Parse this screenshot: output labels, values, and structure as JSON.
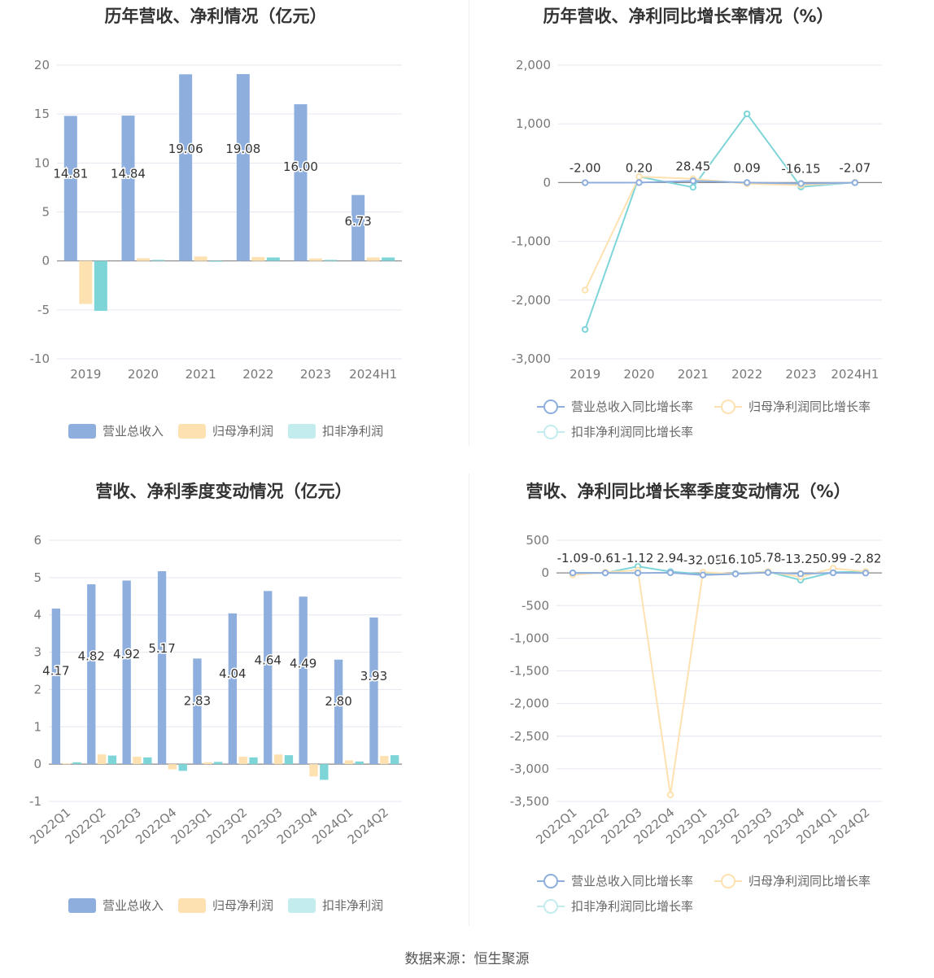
{
  "colors": {
    "revenue": "#8eaede",
    "parent_profit": "#fee1b0",
    "deducted_profit": "#7ed5d8",
    "grid": "#e6e6f0",
    "axis_text": "#777777",
    "label_text": "#333333"
  },
  "source": "数据来源：恒生聚源",
  "chart_data": [
    {
      "type": "bar",
      "title": "历年营收、净利情况（亿元）",
      "categories": [
        "2019",
        "2020",
        "2021",
        "2022",
        "2023",
        "2024H1"
      ],
      "series": [
        {
          "name": "营业总收入",
          "values": [
            14.81,
            14.84,
            19.06,
            19.08,
            16.0,
            6.73
          ],
          "labels": [
            "14.81",
            "14.84",
            "19.06",
            "19.08",
            "16.00",
            "6.73"
          ]
        },
        {
          "name": "归母净利润",
          "values": [
            -4.4,
            0.27,
            0.45,
            0.4,
            0.25,
            0.35
          ]
        },
        {
          "name": "扣非净利润",
          "values": [
            -5.1,
            0.1,
            0.0,
            0.35,
            0.1,
            0.35
          ]
        }
      ],
      "yticks": [
        "20",
        "15",
        "10",
        "5",
        "0",
        "-5",
        "-10"
      ],
      "ylim": [
        -10,
        20
      ],
      "grid": true,
      "legend": "bottom"
    },
    {
      "type": "line",
      "title": "历年营收、净利同比增长率情况（%）",
      "categories": [
        "2019",
        "2020",
        "2021",
        "2022",
        "2023",
        "2024H1"
      ],
      "series": [
        {
          "name": "营业总收入同比增长率",
          "values": [
            -2.0,
            0.2,
            28.45,
            0.09,
            -16.15,
            -2.07
          ],
          "labels": [
            "-2.00",
            "0.20",
            "28.45",
            "0.09",
            "-16.15",
            "-2.07"
          ]
        },
        {
          "name": "归母净利润同比增长率",
          "values": [
            -1830,
            100,
            65,
            -20,
            -45,
            5
          ]
        },
        {
          "name": "扣非净利润同比增长率",
          "values": [
            -2500,
            100,
            -80,
            1170,
            -75,
            5
          ]
        }
      ],
      "yticks": [
        "2,000",
        "1,000",
        "0",
        "-1,000",
        "-2,000",
        "-3,000"
      ],
      "ylim": [
        -3000,
        2000
      ],
      "grid": true,
      "legend": "bottom"
    },
    {
      "type": "bar",
      "title": "营收、净利季度变动情况（亿元）",
      "categories": [
        "2022Q1",
        "2022Q2",
        "2022Q3",
        "2022Q4",
        "2023Q1",
        "2023Q2",
        "2023Q3",
        "2023Q4",
        "2024Q1",
        "2024Q2"
      ],
      "series": [
        {
          "name": "营业总收入",
          "values": [
            4.17,
            4.82,
            4.92,
            5.17,
            2.83,
            4.04,
            4.64,
            4.49,
            2.8,
            3.93
          ],
          "labels": [
            "4.17",
            "4.82",
            "4.92",
            "5.17",
            "2.83",
            "4.04",
            "4.64",
            "4.49",
            "2.80",
            "3.93"
          ]
        },
        {
          "name": "归母净利润",
          "values": [
            0.02,
            0.26,
            0.2,
            -0.14,
            0.05,
            0.2,
            0.26,
            -0.33,
            0.1,
            0.22
          ]
        },
        {
          "name": "扣非净利润",
          "values": [
            0.05,
            0.23,
            0.18,
            -0.18,
            0.06,
            0.18,
            0.24,
            -0.42,
            0.07,
            0.24
          ]
        }
      ],
      "yticks": [
        "6",
        "5",
        "4",
        "3",
        "2",
        "1",
        "0",
        "-1"
      ],
      "ylim": [
        -1,
        6
      ],
      "grid": true,
      "legend": "bottom"
    },
    {
      "type": "line",
      "title": "营收、净利同比增长率季度变动情况（%）",
      "categories": [
        "2022Q1",
        "2022Q2",
        "2022Q3",
        "2022Q4",
        "2023Q1",
        "2023Q2",
        "2023Q3",
        "2023Q4",
        "2024Q1",
        "2024Q2"
      ],
      "series": [
        {
          "name": "营业总收入同比增长率",
          "values": [
            -1.09,
            -0.61,
            -1.12,
            2.94,
            -32.05,
            -16.1,
            5.78,
            -13.25,
            0.99,
            -2.82
          ],
          "labels": [
            "-1.09",
            "-0.61",
            "-1.12",
            "2.94",
            "-32.05",
            "-16.10",
            "5.78",
            "-13.25",
            "0.99",
            "-2.82"
          ]
        },
        {
          "name": "归母净利润同比增长率",
          "values": [
            -30,
            10,
            40,
            -3400,
            10,
            -15,
            20,
            -60,
            70,
            20
          ]
        },
        {
          "name": "扣非净利润同比增长率",
          "values": [
            0,
            0,
            100,
            20,
            -20,
            -10,
            20,
            -110,
            10,
            20
          ]
        }
      ],
      "yticks": [
        "500",
        "0",
        "-500",
        "-1,000",
        "-1,500",
        "-2,000",
        "-2,500",
        "-3,000",
        "-3,500"
      ],
      "ylim": [
        -3500,
        500
      ],
      "grid": true,
      "legend": "bottom"
    }
  ]
}
